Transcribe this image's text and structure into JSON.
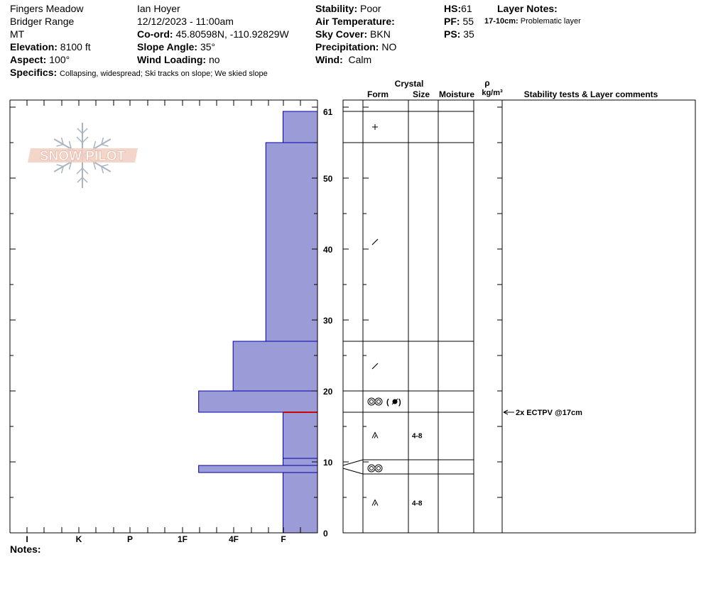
{
  "header": {
    "location": "Fingers Meadow",
    "range": "Bridger Range",
    "state": "MT",
    "observer": "Ian Hoyer",
    "datetime": "12/12/2023 - 11:00am",
    "elevation_label": "Elevation:",
    "elevation_value": "8100 ft",
    "aspect_label": "Aspect:",
    "aspect_value": "100°",
    "coord_label": "Co-ord:",
    "coord_value": "45.80598N, -110.92829W",
    "slope_label": "Slope Angle:",
    "slope_value": "35°",
    "wind_loading_label": "Wind Loading:",
    "wind_loading_value": "no",
    "stability_label": "Stability:",
    "stability_value": "Poor",
    "air_temp_label": "Air Temperature:",
    "air_temp_value": "",
    "sky_label": "Sky Cover:",
    "sky_value": "BKN",
    "precip_label": "Precipitation:",
    "precip_value": "NO",
    "wind_label": "Wind:",
    "wind_value": "Calm",
    "hs_label": "HS:",
    "hs_value": "61",
    "pf_label": "PF:",
    "pf_value": "55",
    "ps_label": "PS:",
    "ps_value": "35",
    "layer_notes_label": "Layer Notes:",
    "layer_note_depth": "17-10cm:",
    "layer_note_text": "Problematic layer",
    "specifics_label": "Specifics:",
    "specifics_value": "Collapsing, widespread;  Ski tracks on slope;  We skied slope",
    "notes_label": "Notes:"
  },
  "logo": {
    "text": "SNOW PILOT"
  },
  "columns": {
    "crystal": "Crystal",
    "form": "Form",
    "size": "Size",
    "moisture": "Moisture",
    "rho": "ρ",
    "density_unit": "kg/m³",
    "comments": "Stability tests & Layer comments"
  },
  "chart_data": {
    "type": "bar",
    "orientation": "horizontal",
    "y_range": [
      0,
      61
    ],
    "y_ticks": [
      "0",
      "10",
      "20",
      "30",
      "40",
      "50",
      "61"
    ],
    "hardness_scale": [
      "I",
      "K",
      "P",
      "1F",
      "4F",
      "F"
    ],
    "hardness_axis_direction": "F at right, I at left",
    "layers": [
      {
        "bottom": 0,
        "top": 8.5,
        "hardness": "F",
        "form": "depth-hoar",
        "size": "4-8"
      },
      {
        "bottom": 8.5,
        "top": 9.5,
        "hardness": "1F+",
        "form": "surface-hoar",
        "size": ""
      },
      {
        "bottom": 9.5,
        "top": 10.5,
        "hardness": "F",
        "form": "surface-hoar",
        "size": ""
      },
      {
        "bottom": 10.5,
        "top": 17,
        "hardness": "F",
        "form": "depth-hoar",
        "size": "4-8"
      },
      {
        "bottom": 17,
        "top": 20,
        "hardness": "1F+",
        "form": "surface-hoar-with-melt-freeze",
        "size": ""
      },
      {
        "bottom": 20,
        "top": 27,
        "hardness": "4F",
        "form": "decomposing",
        "size": ""
      },
      {
        "bottom": 27,
        "top": 55,
        "hardness": "4F+",
        "form": "decomposing",
        "size": ""
      },
      {
        "bottom": 55,
        "top": 61,
        "hardness": "F",
        "form": "new-snow",
        "size": ""
      }
    ],
    "hardness_widths_right_to_left": {
      "F": 1,
      "4F+": 1.5,
      "4F": 2.45,
      "1F+": 3.45
    },
    "problem_layer_depth": 17,
    "stability_test": {
      "depth": 17,
      "text": "2x ECTPV @17cm"
    },
    "colors": {
      "fill": "#9b9bd7",
      "stroke": "#0000aa",
      "problem": "#cc0000"
    }
  }
}
